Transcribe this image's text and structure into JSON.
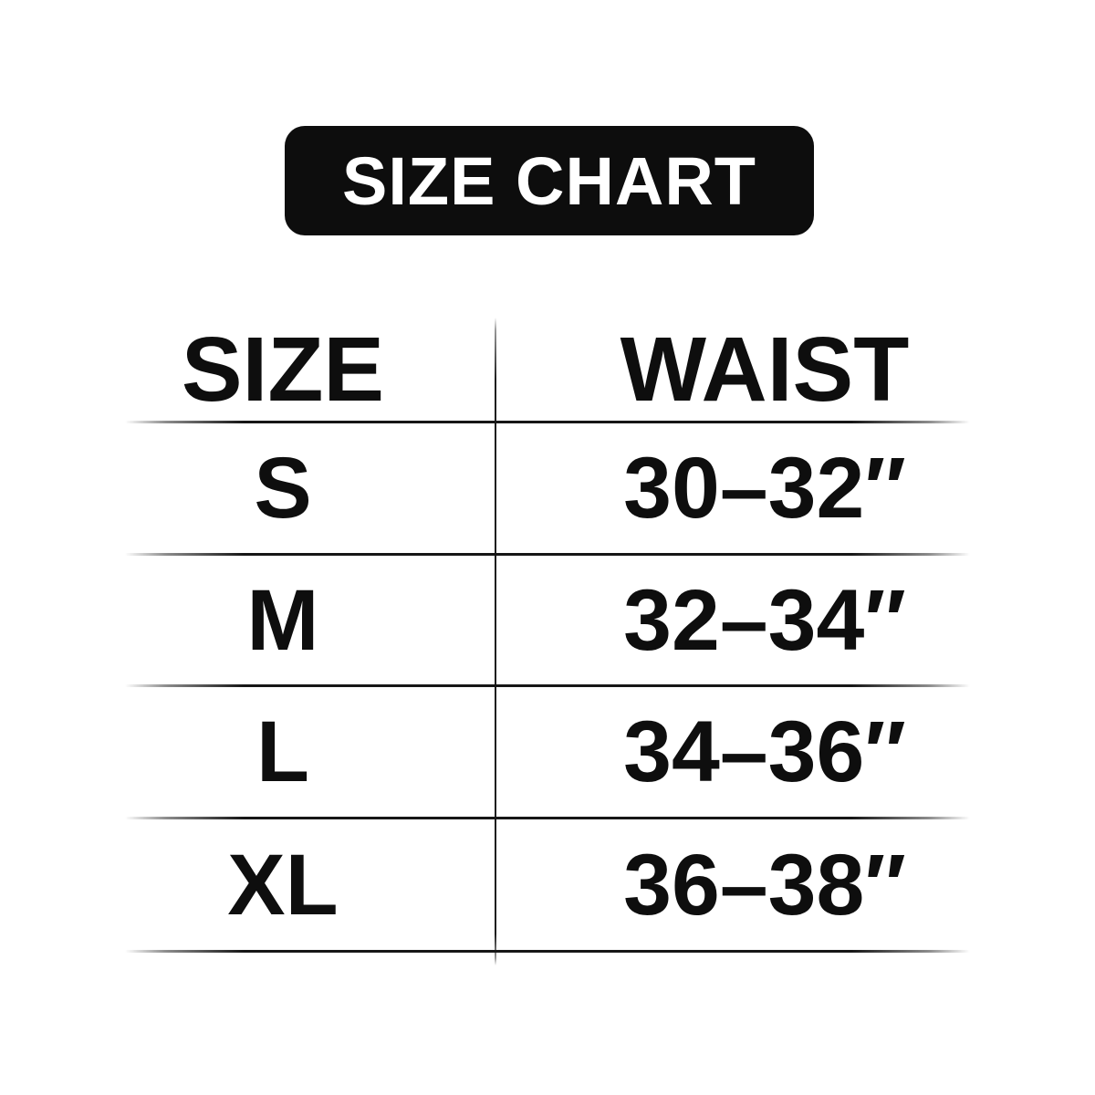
{
  "title_badge": {
    "label": "SIZE CHART"
  },
  "table": {
    "headers": {
      "size": "SIZE",
      "waist": "WAIST"
    },
    "rows": [
      {
        "size": "S",
        "waist": "30–32″"
      },
      {
        "size": "M",
        "waist": "32–34″"
      },
      {
        "size": "L",
        "waist": "34–36″"
      },
      {
        "size": "XL",
        "waist": "36–38″"
      }
    ]
  },
  "colors": {
    "background": "#ffffff",
    "badge_bg": "#0d0d0d",
    "badge_text": "#ffffff",
    "text": "#0e0e0e",
    "divider": "#161616"
  },
  "chart_data": {
    "type": "table",
    "title": "SIZE CHART",
    "columns": [
      "SIZE",
      "WAIST"
    ],
    "rows": [
      [
        "S",
        "30–32″"
      ],
      [
        "M",
        "32–34″"
      ],
      [
        "L",
        "34–36″"
      ],
      [
        "XL",
        "36–38″"
      ]
    ],
    "units": "inches (waist ranges shown with double-prime mark)"
  }
}
